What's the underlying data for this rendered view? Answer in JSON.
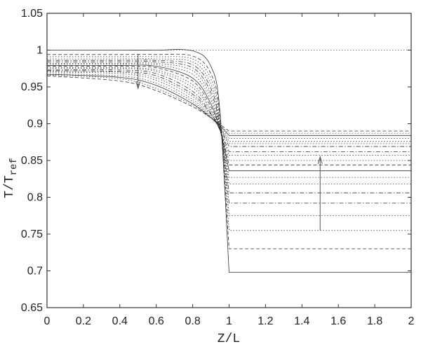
{
  "chart_data": {
    "type": "line",
    "title": "",
    "xlabel": "Z/L",
    "ylabel_main": "T/T",
    "ylabel_sub": "ref",
    "xlim": [
      0,
      2
    ],
    "ylim": [
      0.65,
      1.05
    ],
    "grid": false,
    "xticks": [
      "0",
      "0.2",
      "0.4",
      "0.6",
      "0.8",
      "1",
      "1.2",
      "1.4",
      "1.6",
      "1.8",
      "2"
    ],
    "yticks": [
      "0.65",
      "0.7",
      "0.75",
      "0.8",
      "0.85",
      "0.9",
      "0.95",
      "1",
      "1.05"
    ],
    "line_color": "#333333",
    "reference_line": {
      "y": 1.0,
      "x": [
        0,
        2
      ],
      "style": "dotted"
    },
    "arrows": [
      {
        "x": 0.5,
        "from": 0.995,
        "to": 0.948,
        "direction": "down"
      },
      {
        "x": 1.5,
        "from": 0.755,
        "to": 0.855,
        "direction": "up"
      }
    ],
    "x_left": [
      0,
      0.4,
      0.6,
      0.8,
      0.9,
      0.95,
      1.0
    ],
    "x_right": [
      1.0,
      2.0
    ],
    "series": [
      {
        "style": "solid",
        "left": [
          1.0,
          1.0,
          1.0,
          0.999,
          0.978,
          0.916,
          0.698
        ],
        "right": 0.698
      },
      {
        "style": "dashed",
        "left": [
          0.994,
          0.994,
          0.994,
          0.992,
          0.968,
          0.91,
          0.73
        ],
        "right": 0.73
      },
      {
        "style": "dotted",
        "left": [
          0.991,
          0.991,
          0.991,
          0.988,
          0.961,
          0.905,
          0.755
        ],
        "right": 0.755
      },
      {
        "style": "dotted",
        "left": [
          0.988,
          0.988,
          0.988,
          0.984,
          0.954,
          0.901,
          0.775
        ],
        "right": 0.775
      },
      {
        "style": "dashdot",
        "left": [
          0.986,
          0.986,
          0.986,
          0.98,
          0.948,
          0.898,
          0.792
        ],
        "right": 0.792
      },
      {
        "style": "dashdot",
        "left": [
          0.984,
          0.984,
          0.984,
          0.976,
          0.942,
          0.896,
          0.806
        ],
        "right": 0.806
      },
      {
        "style": "dotted",
        "left": [
          0.982,
          0.982,
          0.982,
          0.972,
          0.937,
          0.894,
          0.818
        ],
        "right": 0.818
      },
      {
        "style": "dotted",
        "left": [
          0.981,
          0.981,
          0.98,
          0.967,
          0.932,
          0.893,
          0.827
        ],
        "right": 0.827
      },
      {
        "style": "solid",
        "left": [
          0.979,
          0.979,
          0.978,
          0.962,
          0.927,
          0.892,
          0.836
        ],
        "right": 0.836
      },
      {
        "style": "dashed",
        "left": [
          0.978,
          0.978,
          0.976,
          0.958,
          0.923,
          0.892,
          0.844
        ],
        "right": 0.844
      },
      {
        "style": "dotted",
        "left": [
          0.976,
          0.976,
          0.973,
          0.953,
          0.919,
          0.891,
          0.85
        ],
        "right": 0.85
      },
      {
        "style": "dotted",
        "left": [
          0.975,
          0.975,
          0.971,
          0.949,
          0.917,
          0.891,
          0.857
        ],
        "right": 0.857
      },
      {
        "style": "dashdot",
        "left": [
          0.973,
          0.973,
          0.968,
          0.944,
          0.914,
          0.891,
          0.862
        ],
        "right": 0.862
      },
      {
        "style": "dashdot",
        "left": [
          0.972,
          0.971,
          0.965,
          0.94,
          0.913,
          0.893,
          0.869
        ],
        "right": 0.869
      },
      {
        "style": "dotted",
        "left": [
          0.971,
          0.97,
          0.962,
          0.937,
          0.911,
          0.894,
          0.873
        ],
        "right": 0.873
      },
      {
        "style": "dotted",
        "left": [
          0.97,
          0.968,
          0.959,
          0.933,
          0.909,
          0.894,
          0.876
        ],
        "right": 0.876
      },
      {
        "style": "dotted",
        "left": [
          0.968,
          0.965,
          0.955,
          0.93,
          0.908,
          0.895,
          0.88
        ],
        "right": 0.88
      },
      {
        "style": "solid",
        "left": [
          0.967,
          0.963,
          0.952,
          0.927,
          0.908,
          0.897,
          0.884
        ],
        "right": 0.884
      },
      {
        "style": "dotted",
        "left": [
          0.966,
          0.961,
          0.948,
          0.925,
          0.908,
          0.898,
          0.887
        ],
        "right": 0.887
      },
      {
        "style": "dashed",
        "left": [
          0.965,
          0.958,
          0.945,
          0.923,
          0.908,
          0.899,
          0.89
        ],
        "right": 0.89
      }
    ]
  }
}
